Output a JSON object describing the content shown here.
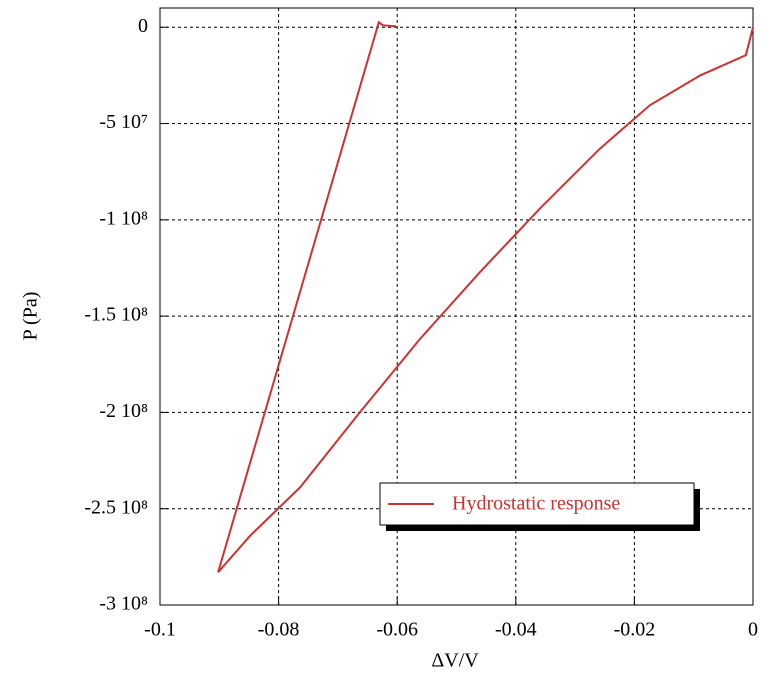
{
  "chart_data": {
    "type": "line",
    "x_label": "ΔV/V",
    "y_label": "P (Pa)",
    "x": [
      0,
      -0.0012,
      -0.0089,
      -0.0174,
      -0.0258,
      -0.0359,
      -0.046,
      -0.0562,
      -0.0663,
      -0.0764,
      -0.0848,
      -0.0902,
      -0.0631,
      -0.0624,
      -0.0602
    ],
    "series": [
      {
        "name": "Hydrostatic response",
        "color": "#d03030",
        "values": [
          0,
          -14500000,
          -25000000,
          -40500000,
          -63000000,
          -94000000,
          -127000000,
          -162000000,
          -200000000,
          -239000000,
          -264000000,
          -283000000,
          2600000,
          1000000,
          500000
        ]
      }
    ],
    "xlim": [
      -0.1,
      0
    ],
    "xticks": [
      -0.1,
      -0.08,
      -0.06,
      -0.04,
      -0.02,
      0
    ],
    "ylim": [
      -300000000,
      10000000
    ],
    "yticks": [
      {
        "value": -300000000,
        "label": "-3 10⁸"
      },
      {
        "value": -250000000,
        "label": "-2.5 10⁸"
      },
      {
        "value": -200000000,
        "label": "-2 10⁸"
      },
      {
        "value": -150000000,
        "label": "-1.5 10⁸"
      },
      {
        "value": -100000000,
        "label": "-1 10⁸"
      },
      {
        "value": -50000000,
        "label": "-5 10⁷"
      },
      0
    ],
    "grid": true,
    "legend": "lower right"
  }
}
